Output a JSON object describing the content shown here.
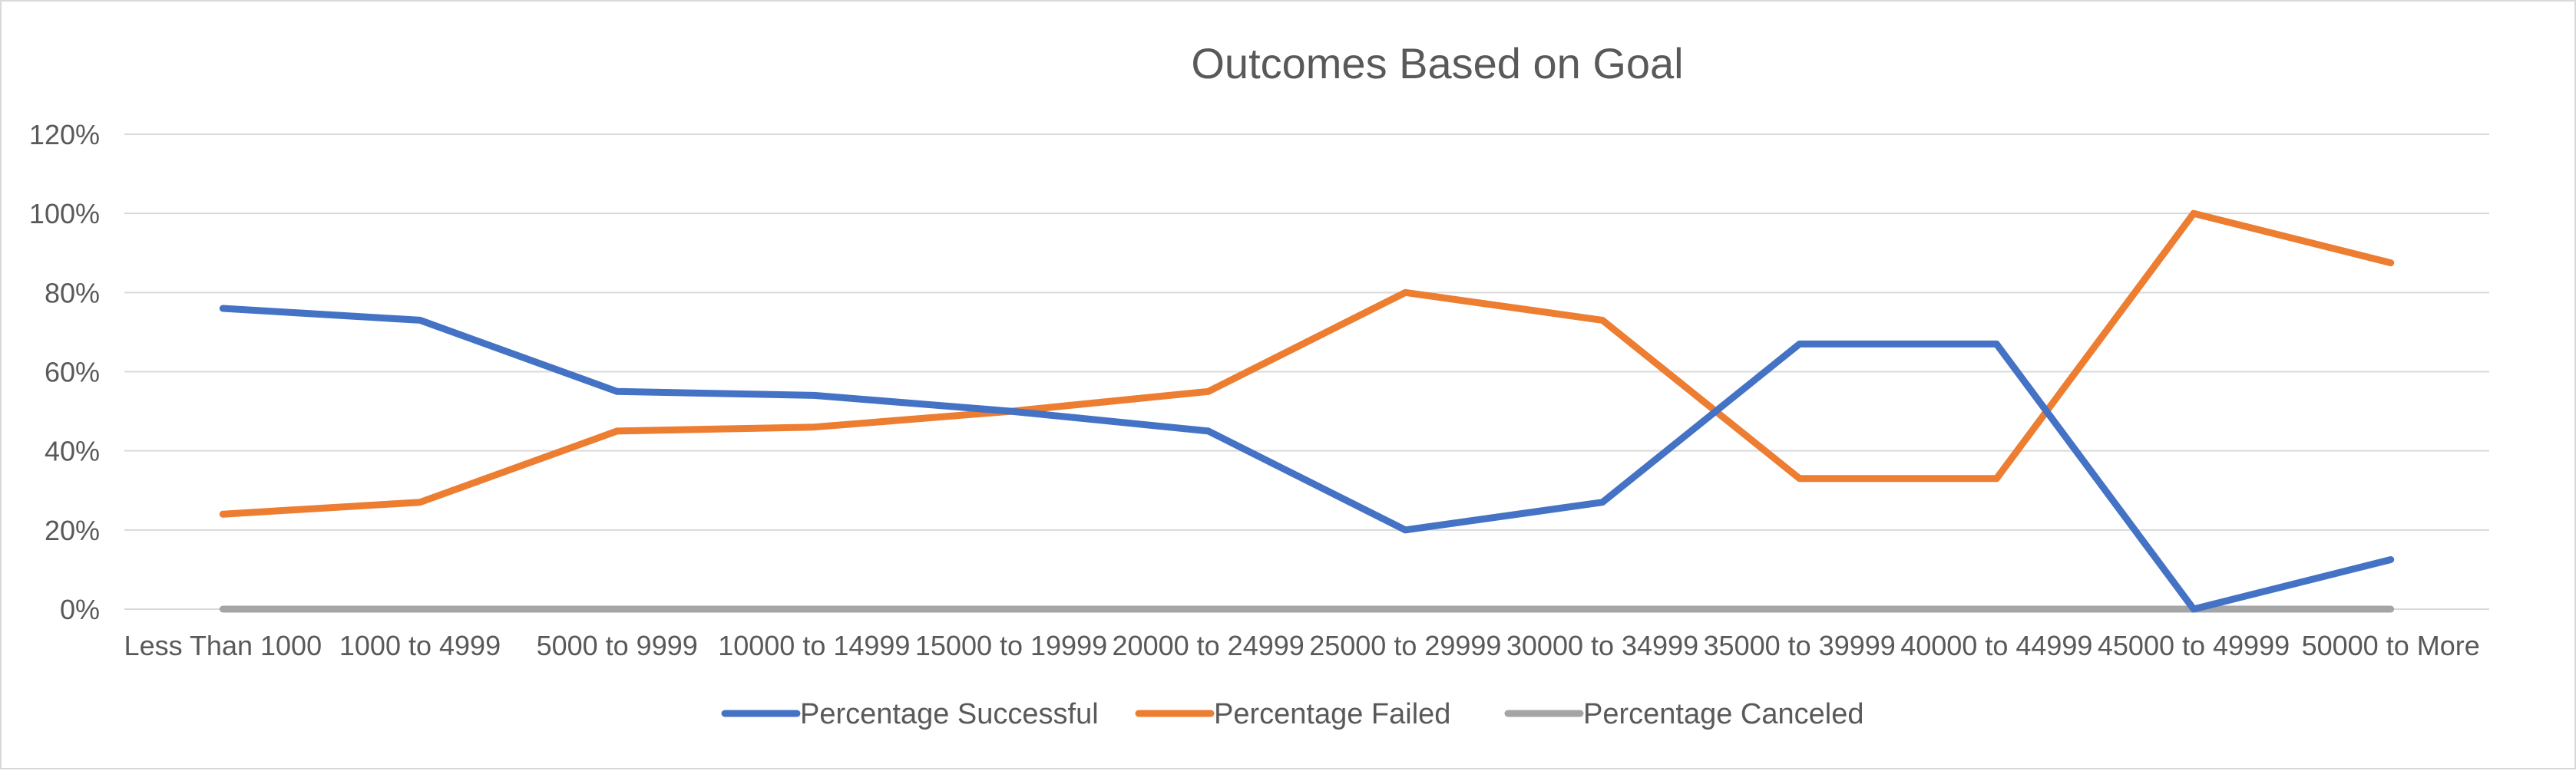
{
  "chart_data": {
    "type": "line",
    "title": "Outcomes Based on Goal",
    "xlabel": "",
    "ylabel": "",
    "categories": [
      "Less Than 1000",
      "1000 to 4999",
      "5000 to 9999",
      "10000 to 14999",
      "15000 to 19999",
      "20000 to 24999",
      "25000 to 29999",
      "30000 to 34999",
      "35000 to 39999",
      "40000 to 44999",
      "45000 to 49999",
      "50000 to More"
    ],
    "ylim": [
      0,
      1.2
    ],
    "yticks": [
      0,
      0.2,
      0.4,
      0.6,
      0.8,
      1.0,
      1.2
    ],
    "ytick_labels": [
      "0%",
      "20%",
      "40%",
      "60%",
      "80%",
      "100%",
      "120%"
    ],
    "grid": true,
    "legend_position": "bottom",
    "series": [
      {
        "name": "Percentage Successful",
        "color": "#4472C4",
        "values": [
          0.76,
          0.73,
          0.55,
          0.54,
          0.5,
          0.45,
          0.2,
          0.27,
          0.67,
          0.67,
          0.0,
          0.125
        ]
      },
      {
        "name": "Percentage Failed",
        "color": "#ED7D31",
        "values": [
          0.24,
          0.27,
          0.45,
          0.46,
          0.5,
          0.55,
          0.8,
          0.73,
          0.33,
          0.33,
          1.0,
          0.875
        ]
      },
      {
        "name": "Percentage Canceled",
        "color": "#A5A5A5",
        "values": [
          0,
          0,
          0,
          0,
          0,
          0,
          0,
          0,
          0,
          0,
          0,
          0
        ]
      }
    ]
  }
}
